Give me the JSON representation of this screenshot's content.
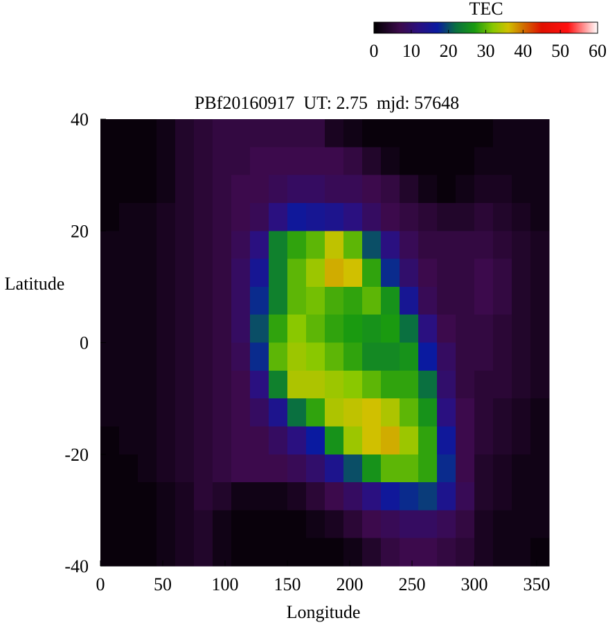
{
  "chart_data": {
    "type": "heatmap",
    "title": "PBf20160917  UT: 2.75  mjd: 57648",
    "x_label": "Longitude",
    "y_label": "Latitude",
    "colorbar_label": "TEC",
    "x": [
      7.5,
      22.5,
      37.5,
      52.5,
      67.5,
      82.5,
      97.5,
      112.5,
      127.5,
      142.5,
      157.5,
      172.5,
      187.5,
      202.5,
      217.5,
      232.5,
      247.5,
      262.5,
      277.5,
      292.5,
      307.5,
      322.5,
      337.5,
      352.5
    ],
    "y": [
      37.5,
      32.5,
      27.5,
      22.5,
      17.5,
      12.5,
      7.5,
      2.5,
      -2.5,
      -7.5,
      -12.5,
      -17.5,
      -22.5,
      -27.5,
      -32.5,
      -37.5
    ],
    "values": [
      [
        1,
        1,
        1,
        2,
        4,
        5,
        6,
        6,
        6,
        6,
        6,
        6,
        3,
        2,
        1,
        1,
        1,
        1,
        1,
        1,
        1,
        2,
        2,
        2
      ],
      [
        1,
        1,
        1,
        2,
        4,
        5,
        6,
        6,
        7,
        7,
        7,
        7,
        7,
        6,
        4,
        2,
        1,
        1,
        1,
        1,
        2,
        2,
        2,
        2
      ],
      [
        1,
        1,
        1,
        2,
        4,
        5,
        6,
        7,
        7,
        8,
        9,
        9,
        8,
        8,
        7,
        6,
        4,
        2,
        1,
        2,
        3,
        3,
        2,
        2
      ],
      [
        1,
        2,
        2,
        3,
        4,
        5,
        6,
        7,
        8,
        12,
        16,
        15,
        14,
        12,
        9,
        7,
        6,
        5,
        4,
        4,
        5,
        4,
        3,
        2
      ],
      [
        2,
        2,
        2,
        3,
        4,
        5,
        6,
        8,
        12,
        24,
        28,
        30,
        35,
        30,
        20,
        12,
        8,
        6,
        6,
        6,
        6,
        5,
        4,
        3
      ],
      [
        2,
        2,
        2,
        3,
        4,
        5,
        6,
        9,
        15,
        24,
        30,
        33,
        37,
        36,
        28,
        18,
        10,
        7,
        6,
        6,
        7,
        6,
        4,
        3
      ],
      [
        2,
        2,
        2,
        3,
        4,
        5,
        6,
        9,
        18,
        24,
        30,
        31,
        29,
        28,
        30,
        26,
        15,
        8,
        6,
        6,
        7,
        6,
        4,
        3
      ],
      [
        2,
        2,
        2,
        3,
        4,
        5,
        6,
        9,
        20,
        28,
        32,
        30,
        28,
        27,
        26,
        27,
        22,
        12,
        7,
        6,
        6,
        5,
        4,
        3
      ],
      [
        2,
        2,
        2,
        3,
        4,
        5,
        6,
        8,
        18,
        30,
        33,
        32,
        30,
        28,
        25,
        25,
        26,
        17,
        9,
        6,
        6,
        5,
        4,
        3
      ],
      [
        2,
        2,
        2,
        3,
        4,
        5,
        6,
        7,
        12,
        24,
        34,
        34,
        33,
        32,
        30,
        28,
        28,
        22,
        10,
        6,
        5,
        5,
        4,
        3
      ],
      [
        2,
        2,
        2,
        3,
        4,
        5,
        6,
        7,
        9,
        14,
        22,
        28,
        34,
        35,
        36,
        34,
        30,
        26,
        12,
        7,
        5,
        4,
        3,
        2
      ],
      [
        1,
        2,
        2,
        3,
        4,
        5,
        6,
        7,
        7,
        9,
        12,
        17,
        26,
        33,
        36,
        37,
        33,
        28,
        16,
        7,
        5,
        4,
        3,
        2
      ],
      [
        1,
        1,
        2,
        3,
        4,
        5,
        6,
        7,
        7,
        7,
        8,
        10,
        14,
        20,
        26,
        30,
        30,
        28,
        18,
        7,
        4,
        3,
        2,
        2
      ],
      [
        1,
        1,
        1,
        2,
        3,
        5,
        4,
        2,
        2,
        2,
        3,
        5,
        7,
        9,
        12,
        16,
        18,
        19,
        14,
        8,
        4,
        3,
        2,
        2
      ],
      [
        1,
        1,
        1,
        2,
        3,
        4,
        2,
        1,
        1,
        1,
        1,
        2,
        3,
        5,
        7,
        8,
        9,
        9,
        8,
        6,
        3,
        2,
        2,
        2
      ],
      [
        1,
        1,
        1,
        2,
        3,
        4,
        2,
        1,
        1,
        1,
        1,
        1,
        1,
        2,
        4,
        6,
        7,
        7,
        6,
        5,
        3,
        2,
        2,
        1
      ]
    ],
    "xlim": [
      0,
      360
    ],
    "xticks": [
      0,
      50,
      100,
      150,
      200,
      250,
      300,
      350
    ],
    "ylim": [
      -40,
      40
    ],
    "yticks": [
      -40,
      -20,
      0,
      20,
      40
    ],
    "clim": [
      0,
      60
    ],
    "cticks": [
      0,
      10,
      20,
      30,
      40,
      50,
      60
    ],
    "colorscale": [
      [
        0,
        "#000000"
      ],
      [
        7,
        "#3c0a4c"
      ],
      [
        12,
        "#2a1080"
      ],
      [
        17,
        "#0a1aa0"
      ],
      [
        22,
        "#0a7040"
      ],
      [
        27,
        "#1a9a10"
      ],
      [
        32,
        "#8ac800"
      ],
      [
        36,
        "#d0c000"
      ],
      [
        40,
        "#d07000"
      ],
      [
        45,
        "#e01000"
      ],
      [
        52,
        "#ff1010"
      ],
      [
        60,
        "#ffffff"
      ]
    ]
  }
}
